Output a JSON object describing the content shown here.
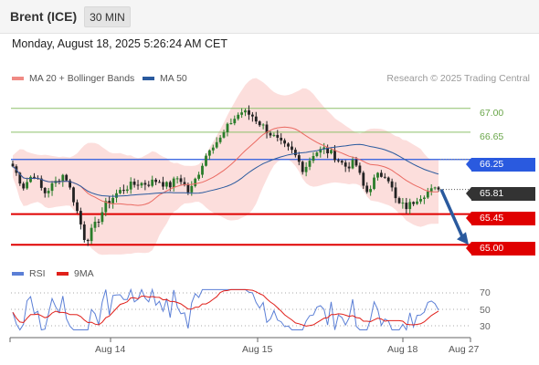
{
  "header": {
    "symbol": "Brent (ICE)",
    "timeframe": "30 MIN"
  },
  "datetime": "Monday, August 18, 2025 5:26:24 AM CET",
  "legend": {
    "ma20": {
      "label": "MA 20 + Bollinger Bands",
      "color": "#f08a84"
    },
    "ma50": {
      "label": "MA 50",
      "color": "#2a5a9e"
    }
  },
  "copyright": "Research © 2025 Trading Central",
  "levels": {
    "r2": "67.00",
    "r1": "66.65",
    "ma50_tag": "66.25",
    "last": "65.81",
    "s1": "65.45",
    "s2": "65.00"
  },
  "rsi_legend": {
    "rsi": "RSI",
    "ma": "9MA",
    "rsi_color": "#5b7fd6",
    "ma_color": "#e0201a"
  },
  "rsi_ticks": [
    "70",
    "50",
    "30"
  ],
  "x_labels": [
    "Aug 14",
    "Aug 15",
    "Aug 18",
    "Aug 27"
  ],
  "colors": {
    "up": "#2a7d2a",
    "down": "#222222",
    "resistance": "#8dc06a",
    "support": "#e00000",
    "ma50": "#2a5adf",
    "arrow": "#2a5a9e"
  },
  "chart_data": {
    "type": "candlestick",
    "y_range": [
      64.95,
      67.25
    ],
    "support_resistance": [
      67.0,
      66.65,
      65.45,
      65.0
    ],
    "ma50_level": 66.25,
    "last_price": 65.81,
    "close_path": [
      66.15,
      65.85,
      66.05,
      65.75,
      65.9,
      66.05,
      65.6,
      65.05,
      65.3,
      65.6,
      65.75,
      65.85,
      65.9,
      65.9,
      65.95,
      65.85,
      66.0,
      65.75,
      66.1,
      66.45,
      66.55,
      66.8,
      66.95,
      66.9,
      66.75,
      66.6,
      66.45,
      66.35,
      66.1,
      66.35,
      66.4,
      66.3,
      66.15,
      66.2,
      65.75,
      66.0,
      66.05,
      65.6,
      65.55,
      65.7,
      65.78,
      65.81
    ],
    "forecast": {
      "from": 65.81,
      "to": 65.0
    },
    "rsi_range": [
      20,
      80
    ]
  }
}
